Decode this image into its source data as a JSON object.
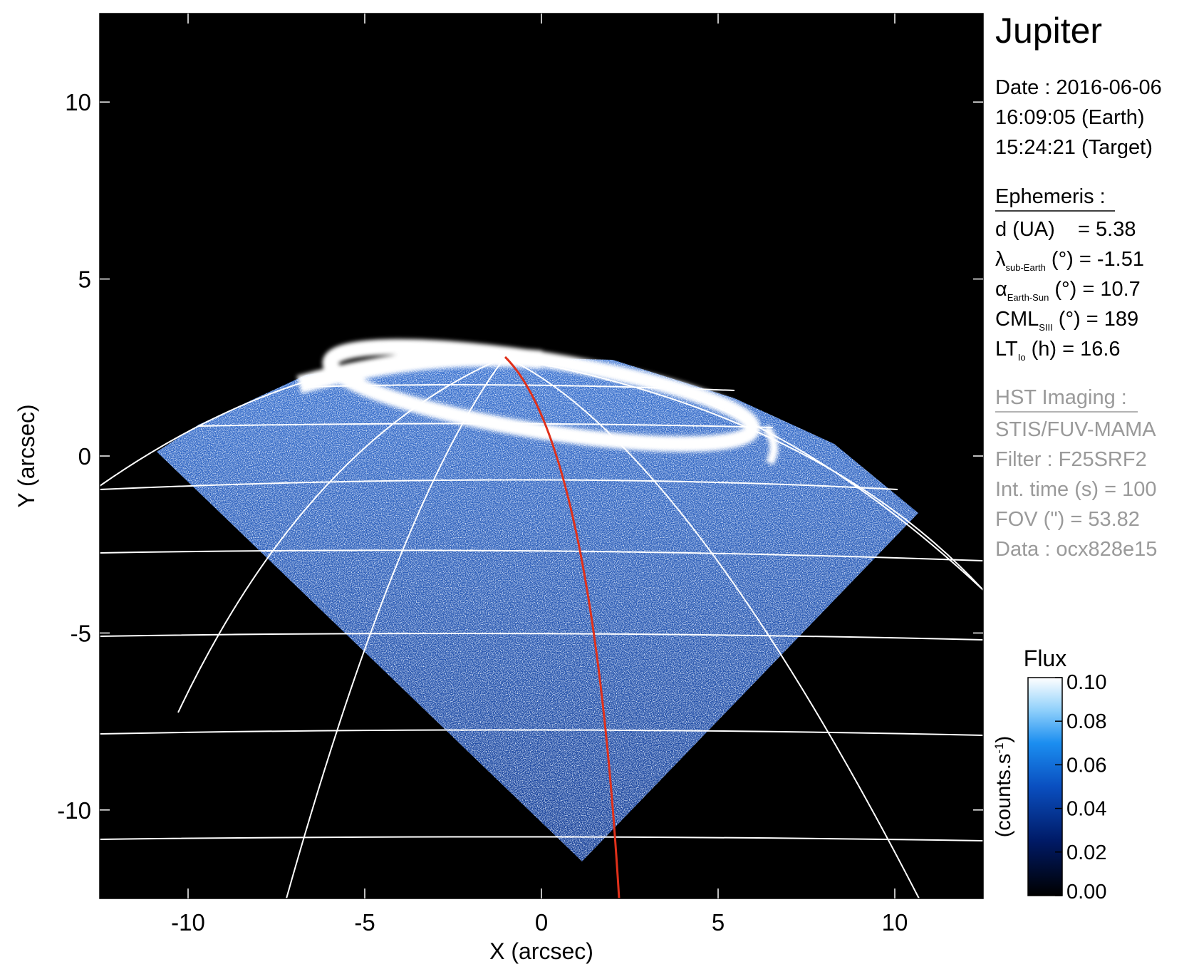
{
  "chart_data": {
    "type": "image",
    "xlabel": "X (arcsec)",
    "ylabel": "Y (arcsec)",
    "xlim": [
      -12.5,
      12.5
    ],
    "ylim": [
      -12.5,
      12.5
    ],
    "xticks": [
      -10,
      -5,
      0,
      5,
      10
    ],
    "yticks": [
      -10,
      -5,
      0,
      5,
      10
    ],
    "colorbar": {
      "title": "Flux",
      "label": {
        "text": "(counts.s",
        "superscript": "-1",
        "suffix": ")"
      },
      "clim": [
        0,
        0.1
      ],
      "ticks": [
        {
          "value": 0,
          "label": "0.00"
        },
        {
          "value": 0.02,
          "label": "0.02"
        },
        {
          "value": 0.04,
          "label": "0.04"
        },
        {
          "value": 0.06,
          "label": "0.06"
        },
        {
          "value": 0.08,
          "label": "0.08"
        },
        {
          "value": 0.1,
          "label": "0.10"
        }
      ]
    }
  },
  "info": {
    "title": "Jupiter",
    "date_lines": [
      "Date : 2016-06-06",
      "16:09:05 (Earth)",
      "15:24:21 (Target)"
    ],
    "ephemeris": {
      "heading": "Ephemeris :",
      "rows": [
        {
          "text": "d (UA)    = 5.38"
        },
        {
          "symbol": "λ",
          "subscript": "sub-Earth",
          "text": " (°) = -1.51"
        },
        {
          "symbol": "α",
          "subscript": "Earth-Sun",
          "text": " (°) = 10.7"
        },
        {
          "symbol": "CML",
          "subscript": "SIII",
          "text": " (°) = 189"
        },
        {
          "symbol": "LT",
          "subscript": "Io",
          "text": " (h) = 16.6"
        }
      ]
    },
    "hst": {
      "heading": "HST Imaging :",
      "rows": [
        "STIS/FUV-MAMA",
        "Filter : F25SRF2",
        "Int. time (s) = 100",
        "FOV (\") = 53.82",
        "Data : ocx828e15"
      ]
    }
  }
}
